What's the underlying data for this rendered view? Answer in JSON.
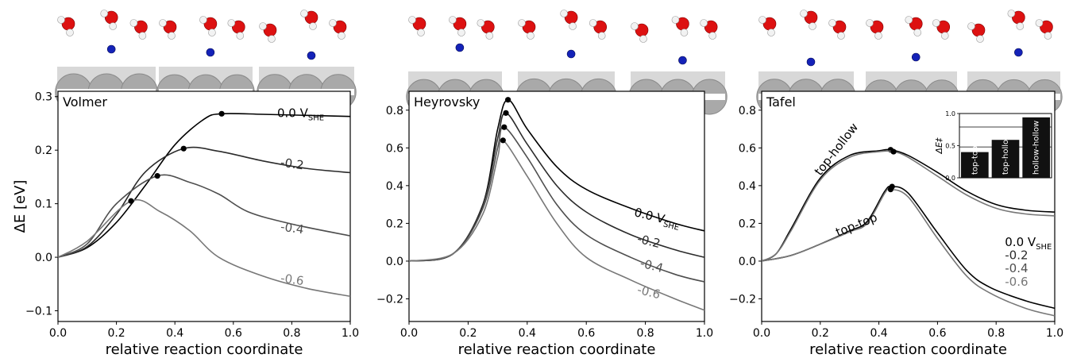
{
  "colors": {
    "c0": "#000000",
    "c1": "#2b2b2b",
    "c2": "#4e4e4e",
    "c3": "#777777",
    "slab_atom": "#a9a9a9",
    "oxygen": "#dd1111",
    "hydrogen": "#f2f2f2",
    "proton": "#1422b8",
    "inset_bar": "#111111"
  },
  "chart_data": [
    {
      "type": "line",
      "title": "Volmer",
      "xlabel": "relative reaction coordinate",
      "ylabel": "ΔE [eV]",
      "xlim": [
        0,
        1.0
      ],
      "ylim": [
        -0.12,
        0.31
      ],
      "xticks": [
        "0.0",
        "0.2",
        "0.4",
        "0.6",
        "0.8",
        "1.0"
      ],
      "yticks": [
        "−0.1",
        "0.0",
        "0.1",
        "0.2",
        "0.3"
      ],
      "xtick_values": [
        0,
        0.2,
        0.4,
        0.6,
        0.8,
        1.0
      ],
      "ytick_values": [
        -0.1,
        0.0,
        0.1,
        0.2,
        0.3
      ],
      "series": [
        {
          "label": "0.0 VSHE",
          "label_main": "0.0 V",
          "label_sub": "SHE",
          "color_key": "c0",
          "x": [
            0,
            0.1,
            0.2,
            0.3,
            0.4,
            0.5,
            0.56,
            0.7,
            0.85,
            1.0
          ],
          "y": [
            0,
            0.018,
            0.065,
            0.135,
            0.21,
            0.258,
            0.268,
            0.267,
            0.265,
            0.263
          ],
          "ts": [
            0.56,
            0.268
          ],
          "label_pos": [
            0.75,
            0.262
          ]
        },
        {
          "label": "-0.2",
          "color_key": "c1",
          "x": [
            0,
            0.1,
            0.2,
            0.3,
            0.43,
            0.55,
            0.7,
            0.85,
            1.0
          ],
          "y": [
            0,
            0.02,
            0.08,
            0.16,
            0.203,
            0.198,
            0.18,
            0.166,
            0.158
          ],
          "ts": [
            0.43,
            0.203
          ],
          "label_pos": [
            0.76,
            0.17
          ]
        },
        {
          "label": "-0.4",
          "color_key": "c2",
          "x": [
            0,
            0.1,
            0.2,
            0.34,
            0.45,
            0.55,
            0.65,
            0.8,
            1.0
          ],
          "y": [
            0,
            0.025,
            0.1,
            0.152,
            0.14,
            0.118,
            0.085,
            0.062,
            0.04
          ],
          "ts": [
            0.34,
            0.152
          ],
          "label_pos": [
            0.76,
            0.05
          ]
        },
        {
          "label": "-0.6",
          "color_key": "c3",
          "x": [
            0,
            0.1,
            0.25,
            0.35,
            0.45,
            0.55,
            0.7,
            0.85,
            1.0
          ],
          "y": [
            0,
            0.03,
            0.105,
            0.085,
            0.05,
            0.0,
            -0.035,
            -0.058,
            -0.073
          ],
          "ts": [
            0.25,
            0.105
          ],
          "label_pos": [
            0.76,
            -0.046
          ]
        }
      ]
    },
    {
      "type": "line",
      "title": "Heyrovsky",
      "xlabel": "relative reaction coordinate",
      "ylabel": "",
      "xlim": [
        0,
        1.0
      ],
      "ylim": [
        -0.32,
        0.9
      ],
      "xticks": [
        "0.0",
        "0.2",
        "0.4",
        "0.6",
        "0.8",
        "1.0"
      ],
      "yticks": [
        "−0.2",
        "0.0",
        "0.2",
        "0.4",
        "0.6",
        "0.8"
      ],
      "xtick_values": [
        0,
        0.2,
        0.4,
        0.6,
        0.8,
        1.0
      ],
      "ytick_values": [
        -0.2,
        0.0,
        0.2,
        0.4,
        0.6,
        0.8
      ],
      "series": [
        {
          "label": "0.0 VSHE",
          "label_main": "0.0 V",
          "label_sub": "SHE",
          "color_key": "c0",
          "x": [
            0,
            0.15,
            0.25,
            0.3,
            0.335,
            0.4,
            0.5,
            0.6,
            0.75,
            0.9,
            1.0
          ],
          "y": [
            0,
            0.04,
            0.3,
            0.7,
            0.855,
            0.7,
            0.5,
            0.38,
            0.28,
            0.2,
            0.16
          ],
          "ts": [
            0.335,
            0.855
          ],
          "label_pos": [
            0.76,
            0.24
          ]
        },
        {
          "label": "-0.2",
          "color_key": "c1",
          "x": [
            0,
            0.15,
            0.25,
            0.3,
            0.328,
            0.4,
            0.5,
            0.6,
            0.75,
            0.9,
            1.0
          ],
          "y": [
            0,
            0.04,
            0.3,
            0.65,
            0.785,
            0.62,
            0.4,
            0.26,
            0.14,
            0.06,
            0.02
          ],
          "ts": [
            0.328,
            0.785
          ],
          "label_pos": [
            0.77,
            0.1
          ]
        },
        {
          "label": "-0.4",
          "color_key": "c2",
          "x": [
            0,
            0.15,
            0.25,
            0.3,
            0.322,
            0.4,
            0.5,
            0.6,
            0.75,
            0.9,
            1.0
          ],
          "y": [
            0,
            0.04,
            0.28,
            0.6,
            0.71,
            0.55,
            0.3,
            0.14,
            0.02,
            -0.07,
            -0.11
          ],
          "ts": [
            0.322,
            0.71
          ],
          "label_pos": [
            0.78,
            -0.03
          ]
        },
        {
          "label": "-0.6",
          "color_key": "c3",
          "x": [
            0,
            0.15,
            0.25,
            0.3,
            0.318,
            0.4,
            0.5,
            0.6,
            0.75,
            0.9,
            1.0
          ],
          "y": [
            0,
            0.04,
            0.25,
            0.55,
            0.64,
            0.45,
            0.2,
            0.02,
            -0.1,
            -0.2,
            -0.26
          ],
          "ts": [
            0.318,
            0.64
          ],
          "label_pos": [
            0.77,
            -0.17
          ]
        }
      ]
    },
    {
      "type": "line",
      "title": "Tafel",
      "xlabel": "relative reaction coordinate",
      "ylabel": "",
      "xlim": [
        0,
        1.0
      ],
      "ylim": [
        -0.32,
        0.9
      ],
      "xticks": [
        "0.0",
        "0.2",
        "0.4",
        "0.6",
        "0.8",
        "1.0"
      ],
      "yticks": [
        "−0.2",
        "0.0",
        "0.2",
        "0.4",
        "0.6",
        "0.8"
      ],
      "xtick_values": [
        0,
        0.2,
        0.4,
        0.6,
        0.8,
        1.0
      ],
      "ytick_values": [
        -0.2,
        0.0,
        0.2,
        0.4,
        0.6,
        0.8
      ],
      "path_labels": [
        {
          "text": "top-hollow",
          "x": 0.2,
          "y": 0.45,
          "angle": -52
        },
        {
          "text": "top-top",
          "x": 0.26,
          "y": 0.13,
          "angle": -22
        }
      ],
      "legend_labels": [
        {
          "text": "0.0 V",
          "sub": "SHE",
          "color_key": "c0",
          "x": 0.83,
          "y": 0.08
        },
        {
          "text": "-0.2",
          "color_key": "c1",
          "x": 0.83,
          "y": 0.01
        },
        {
          "text": "-0.4",
          "color_key": "c2",
          "x": 0.83,
          "y": -0.06
        },
        {
          "text": "-0.6",
          "color_key": "c3",
          "x": 0.83,
          "y": -0.13
        }
      ],
      "series": [
        {
          "name": "top-hollow",
          "color_key": "c0",
          "x": [
            0,
            0.05,
            0.1,
            0.2,
            0.3,
            0.4,
            0.44,
            0.5,
            0.6,
            0.7,
            0.8,
            0.9,
            1.0
          ],
          "y": [
            0,
            0.04,
            0.17,
            0.44,
            0.56,
            0.585,
            0.59,
            0.56,
            0.47,
            0.37,
            0.3,
            0.27,
            0.26
          ],
          "ts": [
            0.44,
            0.59
          ]
        },
        {
          "name": "top-hollow",
          "color_key": "c3",
          "x": [
            0,
            0.05,
            0.1,
            0.2,
            0.3,
            0.4,
            0.45,
            0.5,
            0.6,
            0.7,
            0.8,
            0.9,
            1.0
          ],
          "y": [
            0,
            0.04,
            0.16,
            0.43,
            0.55,
            0.58,
            0.58,
            0.55,
            0.45,
            0.35,
            0.28,
            0.25,
            0.24
          ],
          "ts": [
            0.45,
            0.58
          ]
        },
        {
          "name": "top-top",
          "color_key": "c0",
          "x": [
            0,
            0.1,
            0.2,
            0.3,
            0.36,
            0.42,
            0.445,
            0.5,
            0.6,
            0.7,
            0.78,
            0.9,
            1.0
          ],
          "y": [
            0,
            0.03,
            0.09,
            0.16,
            0.21,
            0.37,
            0.395,
            0.36,
            0.15,
            -0.05,
            -0.14,
            -0.21,
            -0.25
          ],
          "ts": [
            0.445,
            0.395
          ]
        },
        {
          "name": "top-top",
          "color_key": "c3",
          "x": [
            0,
            0.1,
            0.2,
            0.3,
            0.36,
            0.42,
            0.44,
            0.5,
            0.6,
            0.7,
            0.78,
            0.9,
            1.0
          ],
          "y": [
            0,
            0.03,
            0.09,
            0.155,
            0.2,
            0.36,
            0.38,
            0.34,
            0.12,
            -0.08,
            -0.17,
            -0.25,
            -0.29
          ],
          "ts": [
            0.44,
            0.38
          ]
        }
      ],
      "inset": {
        "type": "bar",
        "categories": [
          "top-top",
          "top-hollow",
          "hollow-hollow"
        ],
        "values": [
          0.4,
          0.59,
          0.94
        ],
        "ylabel": "ΔE‡",
        "ylim": [
          0,
          1.0
        ],
        "yticks": [
          "0.0",
          "0.5",
          "1.0"
        ],
        "ytick_values": [
          0,
          0.5,
          1.0
        ],
        "hlines": [
          0.48,
          0.79
        ]
      }
    }
  ]
}
